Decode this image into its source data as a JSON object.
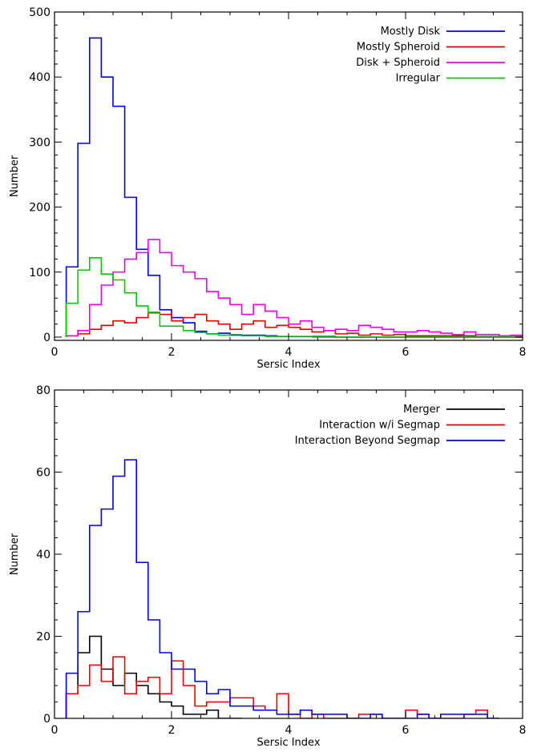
{
  "chart_data": [
    {
      "type": "line",
      "step": true,
      "title": "",
      "xlabel": "Sersic Index",
      "ylabel": "Number",
      "xlim": [
        0,
        8
      ],
      "ylim": [
        -5,
        500
      ],
      "xticks": [
        0,
        2,
        4,
        6,
        8
      ],
      "xtick_labels": [
        "0",
        "2",
        "4",
        "6",
        "8"
      ],
      "yticks": [
        0,
        100,
        200,
        300,
        400,
        500
      ],
      "ytick_labels": [
        "0",
        "100",
        "200",
        "300",
        "400",
        "500"
      ],
      "legend_position": "top-right",
      "bin_width": 0.2,
      "series": [
        {
          "name": "Mostly Disk",
          "color": "#0000ee",
          "bin_starts": [
            0.2,
            0.4,
            0.6,
            0.8,
            1.0,
            1.2,
            1.4,
            1.6,
            1.8,
            2.0,
            2.2,
            2.4,
            2.6,
            2.8,
            3.0,
            3.2,
            3.4,
            3.6,
            3.8,
            4.0,
            4.2,
            4.4,
            4.6,
            4.8,
            5.0,
            5.2,
            5.4,
            5.6,
            5.8,
            6.0,
            6.2,
            6.4,
            6.6,
            6.8,
            7.0,
            7.2,
            7.4,
            7.6,
            7.8
          ],
          "values": [
            108,
            298,
            460,
            400,
            355,
            215,
            135,
            95,
            42,
            30,
            22,
            9,
            5,
            6,
            3,
            3,
            3,
            2,
            1,
            1,
            1,
            1,
            1,
            0,
            0,
            0,
            0,
            0,
            0,
            0,
            0,
            0,
            0,
            0,
            0,
            0,
            0,
            0,
            0
          ]
        },
        {
          "name": "Mostly Spheroid",
          "color": "#ee0000",
          "bin_starts": [
            0.2,
            0.4,
            0.6,
            0.8,
            1.0,
            1.2,
            1.4,
            1.6,
            1.8,
            2.0,
            2.2,
            2.4,
            2.6,
            2.8,
            3.0,
            3.2,
            3.4,
            3.6,
            3.8,
            4.0,
            4.2,
            4.4,
            4.6,
            4.8,
            5.0,
            5.2,
            5.4,
            5.6,
            5.8,
            6.0,
            6.2,
            6.4,
            6.6,
            6.8,
            7.0,
            7.2,
            7.4,
            7.6,
            7.8
          ],
          "values": [
            2,
            5,
            12,
            18,
            25,
            22,
            30,
            38,
            35,
            25,
            30,
            35,
            25,
            20,
            12,
            20,
            25,
            15,
            18,
            15,
            12,
            8,
            10,
            5,
            6,
            3,
            5,
            3,
            4,
            2,
            2,
            2,
            2,
            2,
            2,
            1,
            1,
            1,
            1
          ]
        },
        {
          "name": "Disk + Spheroid",
          "color": "#ee00ee",
          "bin_starts": [
            0.2,
            0.4,
            0.6,
            0.8,
            1.0,
            1.2,
            1.4,
            1.6,
            1.8,
            2.0,
            2.2,
            2.4,
            2.6,
            2.8,
            3.0,
            3.2,
            3.4,
            3.6,
            3.8,
            4.0,
            4.2,
            4.4,
            4.6,
            4.8,
            5.0,
            5.2,
            5.4,
            5.6,
            5.8,
            6.0,
            6.2,
            6.4,
            6.6,
            6.8,
            7.0,
            7.2,
            7.4,
            7.6,
            7.8
          ],
          "values": [
            2,
            10,
            50,
            80,
            100,
            120,
            130,
            150,
            130,
            110,
            100,
            90,
            70,
            60,
            50,
            35,
            50,
            40,
            30,
            20,
            25,
            15,
            10,
            12,
            10,
            18,
            15,
            12,
            8,
            8,
            10,
            8,
            6,
            4,
            8,
            4,
            4,
            2,
            3
          ]
        },
        {
          "name": "Irregular",
          "color": "#00cc00",
          "bin_starts": [
            0.2,
            0.4,
            0.6,
            0.8,
            1.0,
            1.2,
            1.4,
            1.6,
            1.8,
            2.0,
            2.2,
            2.4,
            2.6,
            2.8,
            3.0,
            3.2,
            3.4,
            3.6,
            3.8,
            4.0,
            4.2,
            4.4,
            4.6,
            4.8,
            5.0,
            5.2,
            5.4,
            5.6,
            5.8,
            6.0,
            6.2,
            6.4,
            6.6,
            6.8,
            7.0,
            7.2,
            7.4,
            7.6,
            7.8
          ],
          "values": [
            52,
            103,
            122,
            97,
            88,
            68,
            48,
            37,
            17,
            17,
            10,
            7,
            5,
            3,
            4,
            2,
            2,
            1,
            1,
            1,
            1,
            0,
            0,
            0,
            0,
            0,
            0,
            0,
            0,
            0,
            0,
            0,
            0,
            0,
            0,
            0,
            0,
            0,
            0
          ]
        }
      ]
    },
    {
      "type": "line",
      "step": true,
      "title": "",
      "xlabel": "Sersic Index",
      "ylabel": "Number",
      "xlim": [
        0,
        8
      ],
      "ylim": [
        0,
        80
      ],
      "xticks": [
        0,
        2,
        4,
        6,
        8
      ],
      "xtick_labels": [
        "0",
        "2",
        "4",
        "6",
        "8"
      ],
      "yticks": [
        0,
        20,
        40,
        60,
        80
      ],
      "ytick_labels": [
        "0",
        "20",
        "40",
        "60",
        "80"
      ],
      "legend_position": "top-right",
      "bin_width": 0.2,
      "series": [
        {
          "name": "Merger",
          "color": "#000000",
          "bin_starts": [
            0.2,
            0.4,
            0.6,
            0.8,
            1.0,
            1.2,
            1.4,
            1.6,
            1.8,
            2.0,
            2.2,
            2.4,
            2.6,
            2.8,
            3.0
          ],
          "values": [
            6,
            16,
            20,
            12,
            8,
            11,
            8,
            6,
            4,
            3,
            1,
            1,
            2,
            0,
            0
          ]
        },
        {
          "name": "Interaction w/i Segmap",
          "color": "#ee0000",
          "bin_starts": [
            0.2,
            0.4,
            0.6,
            0.8,
            1.0,
            1.2,
            1.4,
            1.6,
            1.8,
            2.0,
            2.2,
            2.4,
            2.6,
            2.8,
            3.0,
            3.2,
            3.4,
            3.6,
            3.8,
            4.0,
            4.2,
            4.4,
            4.6,
            4.8,
            5.0,
            5.2,
            5.4,
            5.6,
            5.8,
            6.0,
            6.2,
            6.4,
            6.6,
            6.8,
            7.0,
            7.2,
            7.4
          ],
          "values": [
            6,
            8,
            13,
            9,
            15,
            6,
            9,
            10,
            6,
            14,
            8,
            3,
            4,
            4,
            5,
            5,
            3,
            2,
            6,
            1,
            0,
            1,
            0,
            0,
            0,
            1,
            1,
            0,
            0,
            2,
            1,
            0,
            0,
            0,
            1,
            2,
            0
          ]
        },
        {
          "name": "Interaction Beyond Segmap",
          "color": "#0000ee",
          "bin_starts": [
            0.2,
            0.4,
            0.6,
            0.8,
            1.0,
            1.2,
            1.4,
            1.6,
            1.8,
            2.0,
            2.2,
            2.4,
            2.6,
            2.8,
            3.0,
            3.2,
            3.4,
            3.6,
            3.8,
            4.0,
            4.2,
            4.4,
            4.6,
            4.8,
            5.0,
            5.2,
            5.4,
            5.6,
            5.8,
            6.0,
            6.2,
            6.4,
            6.6,
            6.8,
            7.0,
            7.2,
            7.4
          ],
          "values": [
            11,
            26,
            47,
            51,
            59,
            63,
            38,
            24,
            16,
            12,
            12,
            9,
            6,
            7,
            3,
            3,
            2,
            2,
            1,
            1,
            2,
            1,
            1,
            1,
            0,
            0,
            1,
            0,
            0,
            0,
            1,
            0,
            1,
            1,
            1,
            1,
            0
          ]
        }
      ]
    }
  ]
}
